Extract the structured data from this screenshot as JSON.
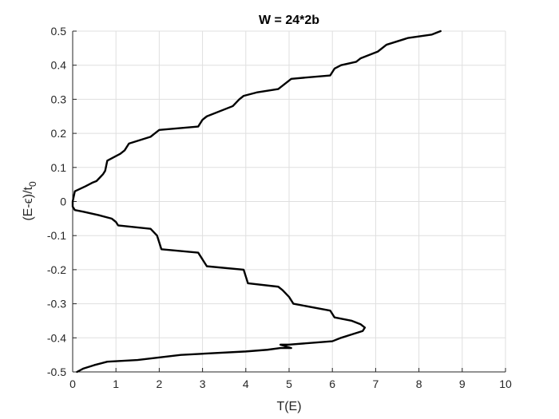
{
  "chart_data": {
    "type": "line",
    "title": "W = 24*2b",
    "xlabel": "T(E)",
    "ylabel": "(E-ϵ)/t",
    "ylabel_sub": "0",
    "xlim": [
      0,
      10
    ],
    "ylim": [
      -0.5,
      0.5
    ],
    "xticks": [
      0,
      1,
      2,
      3,
      4,
      5,
      6,
      7,
      8,
      9,
      10
    ],
    "yticks": [
      -0.5,
      -0.4,
      -0.3,
      -0.2,
      -0.1,
      0,
      0.1,
      0.2,
      0.3,
      0.4,
      0.5
    ],
    "xtick_labels": [
      "0",
      "1",
      "2",
      "3",
      "4",
      "5",
      "6",
      "7",
      "8",
      "9",
      "10"
    ],
    "ytick_labels": [
      "-0.5",
      "-0.4",
      "-0.3",
      "-0.2",
      "-0.1",
      "0",
      "0.1",
      "0.2",
      "0.3",
      "0.4",
      "0.5"
    ],
    "grid": true,
    "line_color": "#000000",
    "series": [
      {
        "x": [
          0.1,
          0.25,
          0.5,
          0.8,
          1.5,
          2.5,
          4.0,
          4.5,
          4.8,
          5.05,
          4.8,
          5.0,
          6.0,
          6.2,
          6.45,
          6.7,
          6.75,
          6.65,
          6.45,
          6.05,
          6.0,
          5.95,
          5.1,
          5.0,
          4.85,
          4.75,
          4.05,
          4.0,
          3.95,
          3.1,
          3.05,
          2.9,
          2.05,
          2.0,
          1.95,
          1.8,
          1.05,
          1.0,
          0.9,
          0.6,
          0.25,
          0.05,
          0.0,
          0.0,
          0.05,
          0.3,
          0.45,
          0.55,
          0.7,
          0.75,
          0.8,
          1.1,
          1.2,
          1.3,
          1.8,
          1.9,
          2.0,
          2.9,
          3.0,
          3.1,
          3.7,
          3.85,
          3.95,
          4.25,
          4.75,
          4.95,
          5.05,
          5.95,
          6.05,
          6.2,
          6.55,
          6.65,
          6.85,
          7.05,
          7.25,
          7.75,
          8.3,
          8.5
        ],
        "y": [
          -0.5,
          -0.49,
          -0.48,
          -0.47,
          -0.465,
          -0.45,
          -0.44,
          -0.435,
          -0.43,
          -0.43,
          -0.42,
          -0.42,
          -0.41,
          -0.4,
          -0.39,
          -0.38,
          -0.37,
          -0.36,
          -0.35,
          -0.34,
          -0.33,
          -0.32,
          -0.3,
          -0.28,
          -0.26,
          -0.25,
          -0.24,
          -0.22,
          -0.2,
          -0.19,
          -0.18,
          -0.15,
          -0.14,
          -0.12,
          -0.1,
          -0.08,
          -0.07,
          -0.06,
          -0.05,
          -0.04,
          -0.03,
          -0.025,
          -0.015,
          0.0,
          0.03,
          0.045,
          0.055,
          0.06,
          0.08,
          0.09,
          0.12,
          0.14,
          0.15,
          0.17,
          0.19,
          0.2,
          0.21,
          0.22,
          0.24,
          0.25,
          0.28,
          0.3,
          0.31,
          0.32,
          0.33,
          0.35,
          0.36,
          0.37,
          0.39,
          0.4,
          0.41,
          0.42,
          0.43,
          0.44,
          0.46,
          0.48,
          0.49,
          0.5
        ]
      }
    ]
  }
}
